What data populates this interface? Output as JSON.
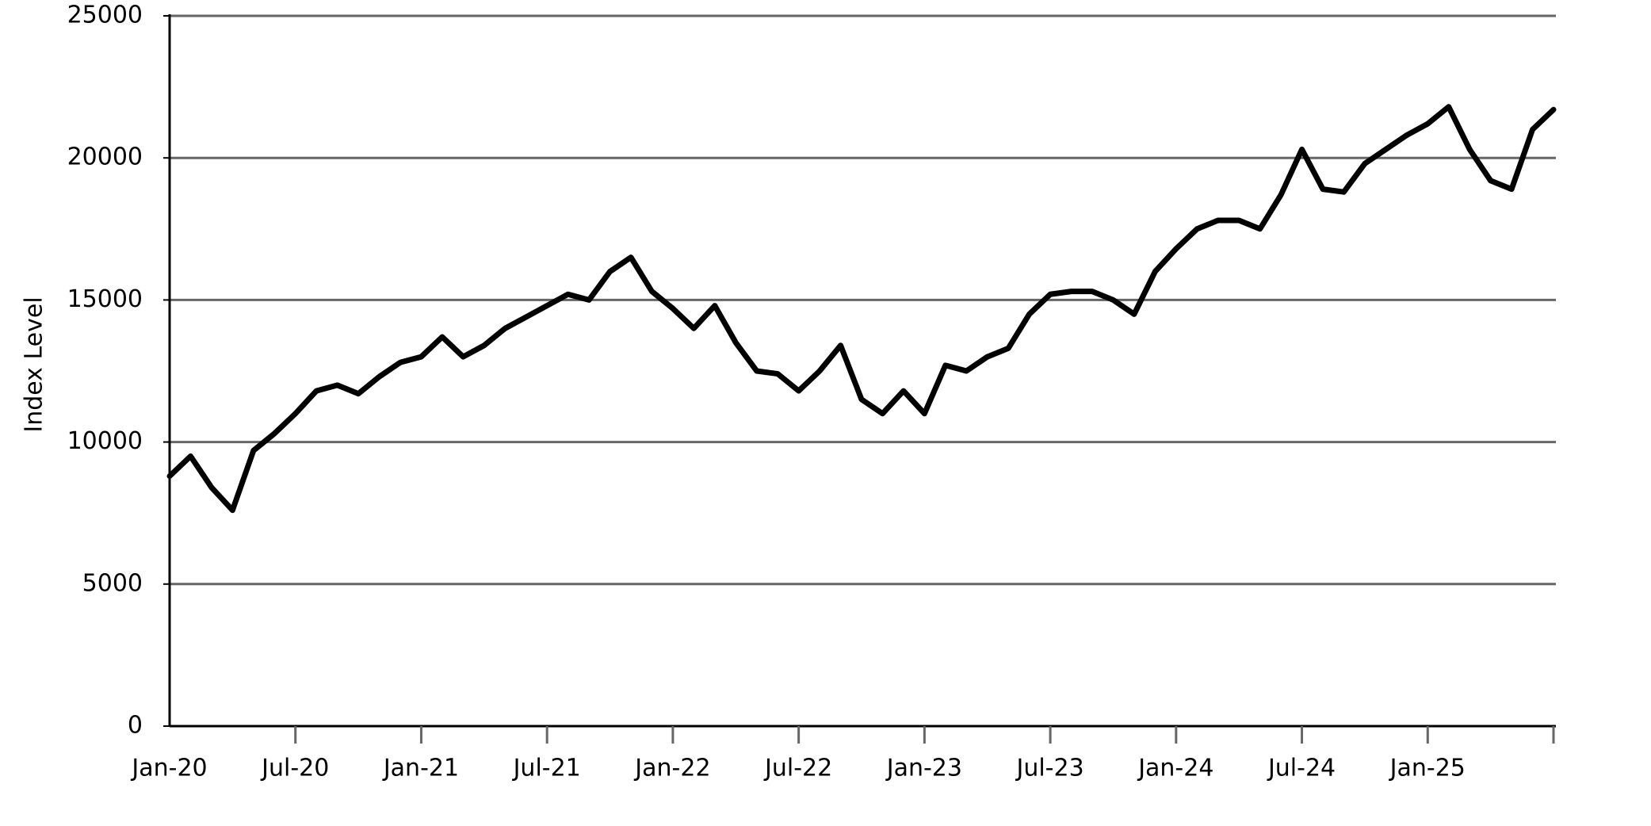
{
  "chart_data": {
    "type": "line",
    "y_label": "Index Level",
    "categories": [
      "Jan-20",
      null,
      null,
      null,
      null,
      null,
      "Jul-20",
      null,
      null,
      null,
      null,
      null,
      "Jan-21",
      null,
      null,
      null,
      null,
      null,
      "Jul-21",
      null,
      null,
      null,
      null,
      null,
      "Jan-22",
      null,
      null,
      null,
      null,
      null,
      "Jul-22",
      null,
      null,
      null,
      null,
      null,
      "Jan-23",
      null,
      null,
      null,
      null,
      null,
      "Jul-23",
      null,
      null,
      null,
      null,
      null,
      "Jan-24",
      null,
      null,
      null,
      null,
      null,
      "Jul-24",
      null,
      null,
      null,
      null,
      null,
      "Jan-25",
      null,
      null,
      null,
      null,
      null,
      null
    ],
    "series": [
      {
        "name": "Index Level",
        "color": "#000000",
        "values": [
          8800,
          9500,
          8400,
          7600,
          9700,
          10300,
          11000,
          11800,
          12000,
          11700,
          12300,
          12800,
          13000,
          13700,
          13000,
          13400,
          14000,
          14400,
          14800,
          15200,
          15000,
          16000,
          16500,
          15300,
          14700,
          14000,
          14800,
          13500,
          12500,
          12400,
          11800,
          12500,
          13400,
          11500,
          11000,
          11800,
          11000,
          12700,
          12500,
          13000,
          13300,
          14500,
          15200,
          15300,
          15300,
          15000,
          14500,
          16000,
          16800,
          17500,
          17800,
          17800,
          17500,
          18700,
          20300,
          18900,
          18800,
          19800,
          20300,
          20800,
          21200,
          21800,
          20300,
          19200,
          18900,
          21000,
          21700
        ]
      }
    ],
    "ylim": [
      0,
      25000
    ],
    "yticks": [
      0,
      5000,
      10000,
      15000,
      20000,
      25000
    ],
    "grid": true
  }
}
